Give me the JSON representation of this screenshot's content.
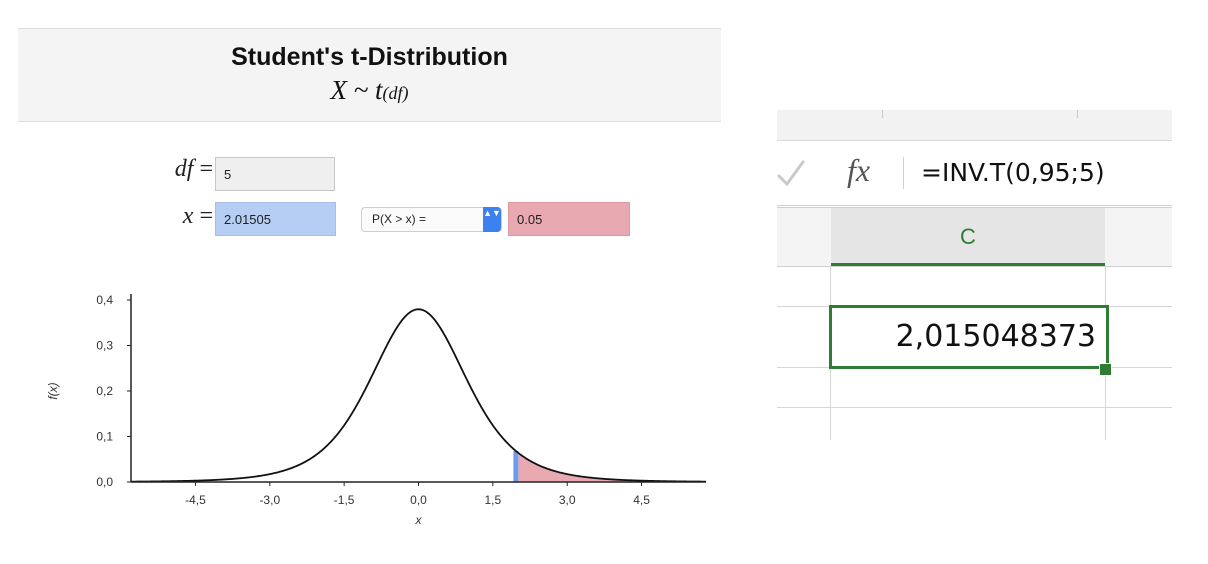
{
  "left_app": {
    "title": "Student's t-Distribution",
    "subtitle_main": "X ~ t",
    "subtitle_sub": "(df)",
    "df_label": "df",
    "x_label": "x",
    "equals": "=",
    "df_value": "5",
    "x_value": "2.01505",
    "probability_select": "P(X > x) =",
    "probability_value": "0.05",
    "select_arrow_glyph": "▲▼"
  },
  "chart_data": {
    "type": "area",
    "distribution": "Student's t",
    "df": 5,
    "ylabel": "f(x)",
    "xlabel": "x",
    "xlim": [
      -5.8,
      5.8
    ],
    "ylim": [
      0,
      0.4
    ],
    "x_ticks": [
      -4.5,
      -3.0,
      -1.5,
      0.0,
      1.5,
      3.0,
      4.5
    ],
    "x_tick_labels": [
      "-4,5",
      "-3,0",
      "-1,5",
      "0,0",
      "1,5",
      "3,0",
      "4,5"
    ],
    "y_ticks": [
      0.0,
      0.1,
      0.2,
      0.3,
      0.4
    ],
    "y_tick_labels": [
      "0,0",
      "0,1",
      "0,2",
      "0,3",
      "0,4"
    ],
    "shaded_from_x": 2.01505,
    "tail_probability": 0.05,
    "colors": {
      "curve": "#111111",
      "tail_fill": "#e8aab0",
      "marker": "#6f9cf0"
    },
    "grid": false
  },
  "spreadsheet": {
    "formula_icon": "fx",
    "formula": "=INV.T(0,95;5)",
    "column_header": "C",
    "cell_value": "2,015048373",
    "accent_color": "#2f7d32"
  }
}
